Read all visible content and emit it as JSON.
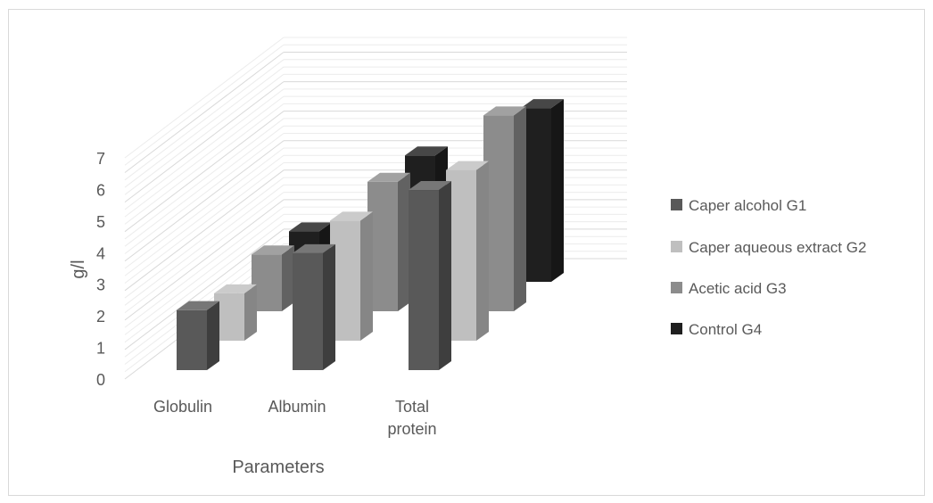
{
  "chart_data": {
    "type": "bar",
    "subtype": "3d-clustered-column",
    "title": "",
    "xlabel": "Parameters",
    "ylabel": "g/l",
    "ylim": [
      0,
      7
    ],
    "yticks": [
      "0",
      "1",
      "2",
      "3",
      "4",
      "5",
      "6",
      "7"
    ],
    "categories": [
      "Globulin",
      "Albumin",
      "Total protein"
    ],
    "category_label_lines": [
      [
        "Globulin"
      ],
      [
        "Albumin"
      ],
      [
        "Total",
        "protein"
      ]
    ],
    "series": [
      {
        "name": "Caper alcohol G1",
        "color": "#595959",
        "values": [
          1.9,
          3.7,
          5.7
        ]
      },
      {
        "name": "Caper aqueous extract G2",
        "color": "#bfbfbf",
        "values": [
          1.5,
          3.8,
          5.4
        ]
      },
      {
        "name": "Acetic acid G3",
        "color": "#8c8c8c",
        "values": [
          1.8,
          4.1,
          6.2
        ]
      },
      {
        "name": "Control G4",
        "color": "#1f1f1f",
        "values": [
          1.6,
          4.0,
          5.5
        ]
      }
    ],
    "grid": true,
    "legend": "right"
  }
}
